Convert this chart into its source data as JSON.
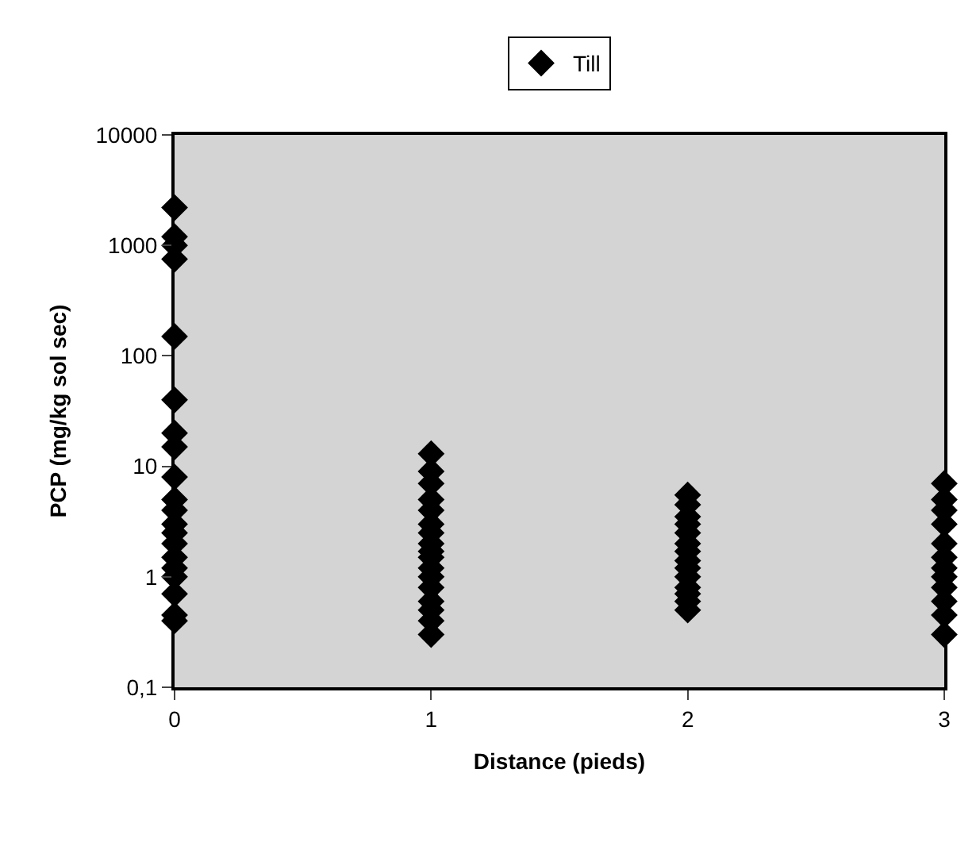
{
  "chart_data": {
    "type": "scatter",
    "xlabel": "Distance (pieds)",
    "ylabel": "PCP (mg/kg sol sec)",
    "series": [
      {
        "name": "Till",
        "color": "#000000",
        "x": [
          0,
          0,
          0,
          0,
          0,
          0,
          0,
          0,
          0,
          0,
          0,
          0,
          0,
          0,
          0,
          0,
          0,
          0,
          0,
          0,
          1,
          1,
          1,
          1,
          1,
          1,
          1,
          1,
          1,
          1,
          1,
          1,
          1,
          1,
          1,
          1,
          1,
          2,
          2,
          2,
          2,
          2,
          2,
          2,
          2,
          2,
          2,
          2,
          2,
          2,
          2,
          3,
          3,
          3,
          3,
          3,
          3,
          3,
          3,
          3,
          3,
          3,
          3
        ],
        "values": [
          2200,
          1200,
          1000,
          750,
          150,
          40,
          20,
          15,
          8,
          5,
          4,
          3,
          2.5,
          2,
          1.5,
          1.2,
          1,
          0.7,
          0.45,
          0.4,
          13,
          9,
          7,
          5,
          4,
          3,
          2.5,
          2,
          1.7,
          1.5,
          1.2,
          1,
          0.8,
          0.6,
          0.5,
          0.4,
          0.3,
          5.5,
          4.5,
          3.5,
          3,
          2.5,
          2,
          1.7,
          1.4,
          1.2,
          1,
          0.8,
          0.7,
          0.6,
          0.5,
          7,
          5,
          4,
          3,
          2,
          1.5,
          1.2,
          1,
          0.8,
          0.6,
          0.45,
          0.3
        ]
      }
    ],
    "marker": "diamond",
    "log": "y",
    "xlim": [
      0,
      3
    ],
    "xticks": [
      0,
      1,
      2,
      3
    ],
    "ylim": [
      0.1,
      10000
    ],
    "yticks": [
      {
        "value": 0.1,
        "label": "0,1"
      },
      1,
      10,
      100,
      1000,
      10000
    ],
    "legend": "top",
    "grid": false
  }
}
